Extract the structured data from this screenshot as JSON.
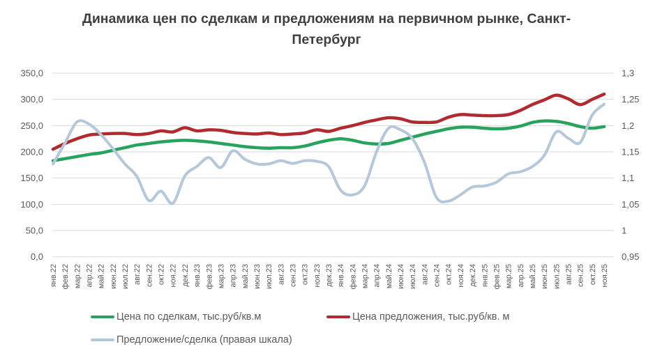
{
  "title": "Динамика цен по сделкам и предложениям на первичном рынке, Санкт-Петербург",
  "colors": {
    "deal_line": "#27a35e",
    "offer_line": "#b02a30",
    "ratio_line": "#b5c8da",
    "gridline": "#d9d9d9",
    "axis_text": "#595959",
    "title_text": "#3f3f3f",
    "background": "#ffffff"
  },
  "chart_data": {
    "type": "line",
    "title": "Динамика цен по сделкам и предложениям на первичном рынке, Санкт-Петербург",
    "grid": true,
    "legend_position": "bottom",
    "categories": [
      "янв.22",
      "фев.22",
      "мар.22",
      "апр.22",
      "май.22",
      "июн.22",
      "июл.22",
      "авг.22",
      "сен.22",
      "окт.22",
      "ноя.22",
      "дек.22",
      "янв.23",
      "фев.23",
      "мар.23",
      "апр.23",
      "май.23",
      "июн.23",
      "июл.23",
      "авг.23",
      "сен.23",
      "окт.23",
      "ноя.23",
      "дек.23",
      "янв.24",
      "фев.24",
      "мар.24",
      "апр.24",
      "май.24",
      "июн.24",
      "июл.24",
      "авг.24",
      "сен.24",
      "окт.24",
      "ноя.24",
      "дек.24",
      "янв.25",
      "фев.25",
      "мар.25",
      "апр.25",
      "май.25",
      "июн.25",
      "июл.25",
      "авг.25",
      "сен.25",
      "окт.25",
      "ноя.25"
    ],
    "left_axis": {
      "min": 0,
      "max": 350,
      "tick_labels": [
        "350,0",
        "300,0",
        "250,0",
        "200,0",
        "150,0",
        "100,0",
        "50,0",
        "0,0"
      ]
    },
    "right_axis": {
      "min": 0.95,
      "max": 1.3,
      "tick_labels": [
        "1,3",
        "1,25",
        "1,2",
        "1,15",
        "1,1",
        "1,05",
        "1",
        "0,95"
      ]
    },
    "series": [
      {
        "name": "Цена по сделкам, тыс.руб/кв.м",
        "axis": "left",
        "color": "#27a35e",
        "width": 4.5,
        "values": [
          183,
          187,
          191,
          195,
          198,
          203,
          208,
          213,
          216,
          219,
          221,
          222,
          221,
          219,
          216,
          213,
          210,
          208,
          207,
          208,
          208,
          211,
          217,
          222,
          225,
          222,
          217,
          215,
          216,
          222,
          228,
          234,
          239,
          244,
          247,
          247,
          245,
          244,
          245,
          249,
          256,
          259,
          258,
          254,
          248,
          245,
          248
        ]
      },
      {
        "name": "Цена предложения, тыс.руб/кв. м",
        "axis": "left",
        "color": "#b02a30",
        "width": 4.5,
        "values": [
          205,
          216,
          225,
          232,
          234,
          235,
          235,
          233,
          235,
          240,
          238,
          246,
          240,
          242,
          241,
          237,
          235,
          234,
          236,
          233,
          234,
          236,
          242,
          239,
          245,
          250,
          256,
          261,
          265,
          263,
          257,
          256,
          257,
          266,
          271,
          270,
          269,
          269,
          271,
          279,
          290,
          299,
          308,
          301,
          290,
          300,
          310
        ]
      },
      {
        "name": "Предложение/сделка (правая шкала)",
        "axis": "right",
        "color": "#b5c8da",
        "width": 4,
        "values": [
          1.127,
          1.167,
          1.207,
          1.203,
          1.183,
          1.156,
          1.127,
          1.103,
          1.057,
          1.075,
          1.052,
          1.104,
          1.122,
          1.139,
          1.12,
          1.152,
          1.136,
          1.127,
          1.127,
          1.133,
          1.128,
          1.133,
          1.132,
          1.122,
          1.077,
          1.068,
          1.085,
          1.15,
          1.195,
          1.192,
          1.175,
          1.13,
          1.063,
          1.056,
          1.068,
          1.083,
          1.085,
          1.092,
          1.108,
          1.112,
          1.122,
          1.143,
          1.188,
          1.176,
          1.168,
          1.22,
          1.241
        ]
      }
    ]
  },
  "legend": {
    "items": [
      {
        "label": "Цена по сделкам, тыс.руб/кв.м"
      },
      {
        "label": "Цена предложения, тыс.руб/кв. м"
      },
      {
        "label": "Предложение/сделка (правая шкала)"
      }
    ]
  }
}
